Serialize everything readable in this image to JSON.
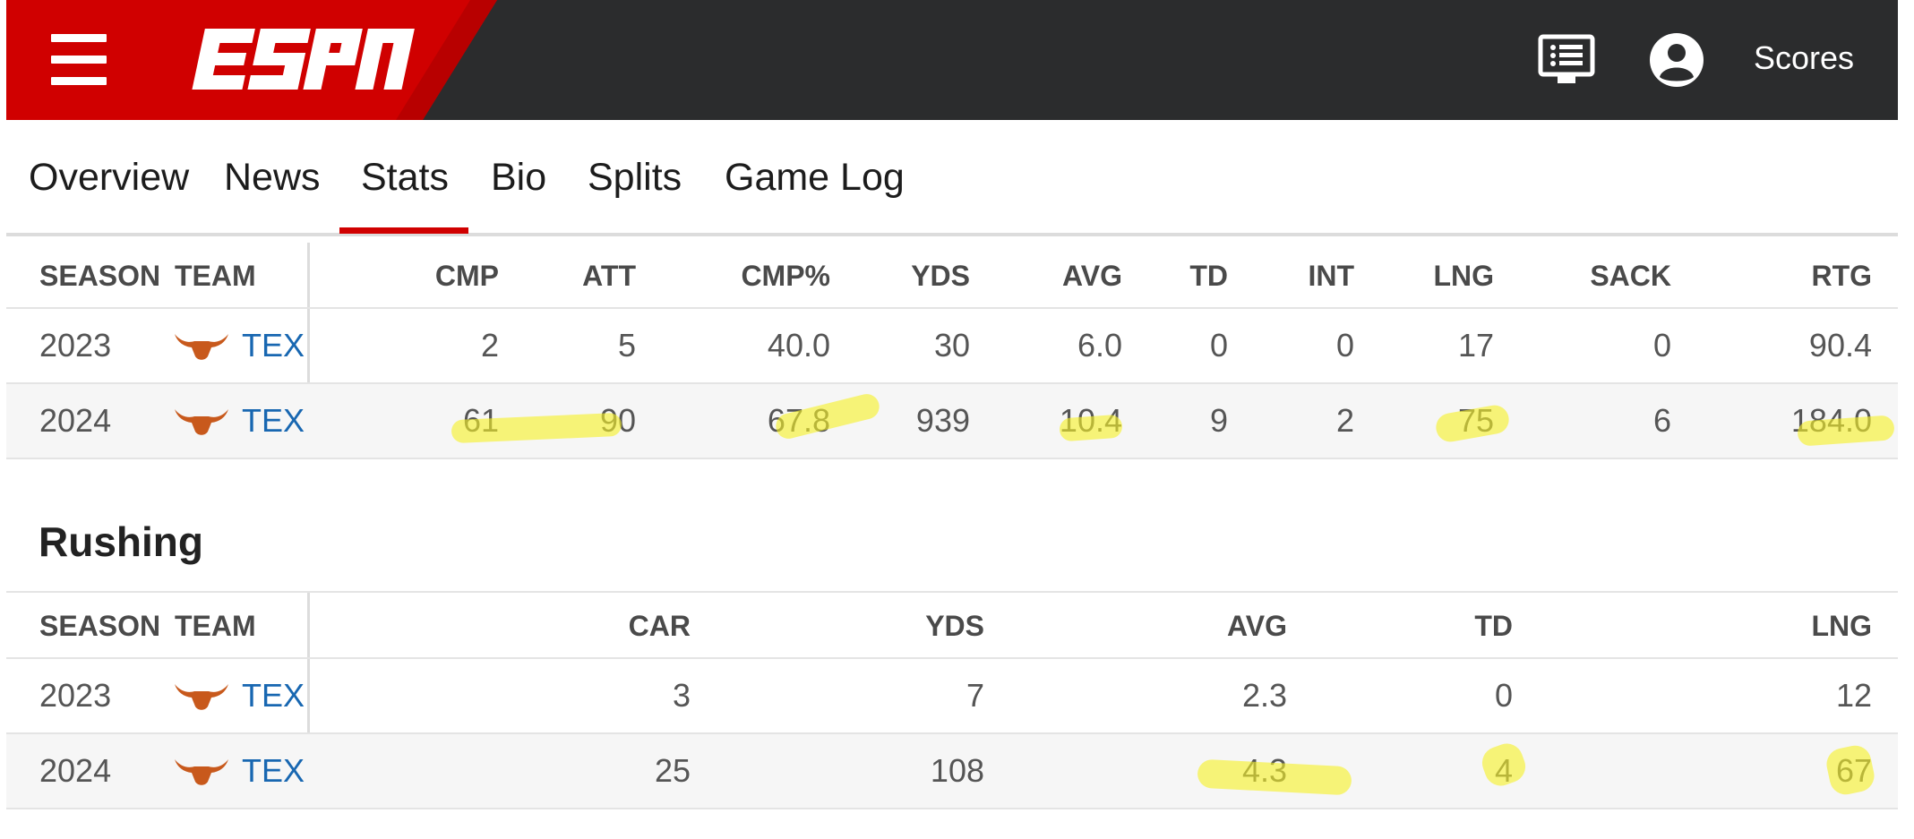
{
  "header": {
    "brand": "ESPN",
    "brand_color": "#d00000",
    "scores_label": "Scores",
    "icons": [
      "menu-icon",
      "espn-logo",
      "messages-icon",
      "profile-icon"
    ]
  },
  "tabs": [
    {
      "label": "Overview",
      "active": false
    },
    {
      "label": "News",
      "active": false
    },
    {
      "label": "Stats",
      "active": true
    },
    {
      "label": "Bio",
      "active": false
    },
    {
      "label": "Splits",
      "active": false
    },
    {
      "label": "Game Log",
      "active": false
    }
  ],
  "passing": {
    "fixed_headers": [
      "SEASON",
      "TEAM"
    ],
    "headers": [
      "CMP",
      "ATT",
      "CMP%",
      "YDS",
      "AVG",
      "TD",
      "INT",
      "LNG",
      "SACK",
      "RTG"
    ],
    "rows": [
      {
        "season": "2023",
        "team": "TEX",
        "values": [
          "2",
          "5",
          "40.0",
          "30",
          "6.0",
          "0",
          "0",
          "17",
          "0",
          "90.4"
        ]
      },
      {
        "season": "2024",
        "team": "TEX",
        "values": [
          "61",
          "90",
          "67.8",
          "939",
          "10.4",
          "9",
          "2",
          "75",
          "6",
          "184.0"
        ]
      }
    ]
  },
  "rushing": {
    "title": "Rushing",
    "fixed_headers": [
      "SEASON",
      "TEAM"
    ],
    "headers": [
      "CAR",
      "YDS",
      "AVG",
      "TD",
      "LNG"
    ],
    "rows": [
      {
        "season": "2023",
        "team": "TEX",
        "values": [
          "3",
          "7",
          "2.3",
          "0",
          "12"
        ]
      },
      {
        "season": "2024",
        "team": "TEX",
        "values": [
          "25",
          "108",
          "4.3",
          "4",
          "67"
        ]
      }
    ]
  },
  "colors": {
    "link": "#1867b1",
    "highlight": "#f5f028",
    "header_bg": "#2b2c2d"
  }
}
